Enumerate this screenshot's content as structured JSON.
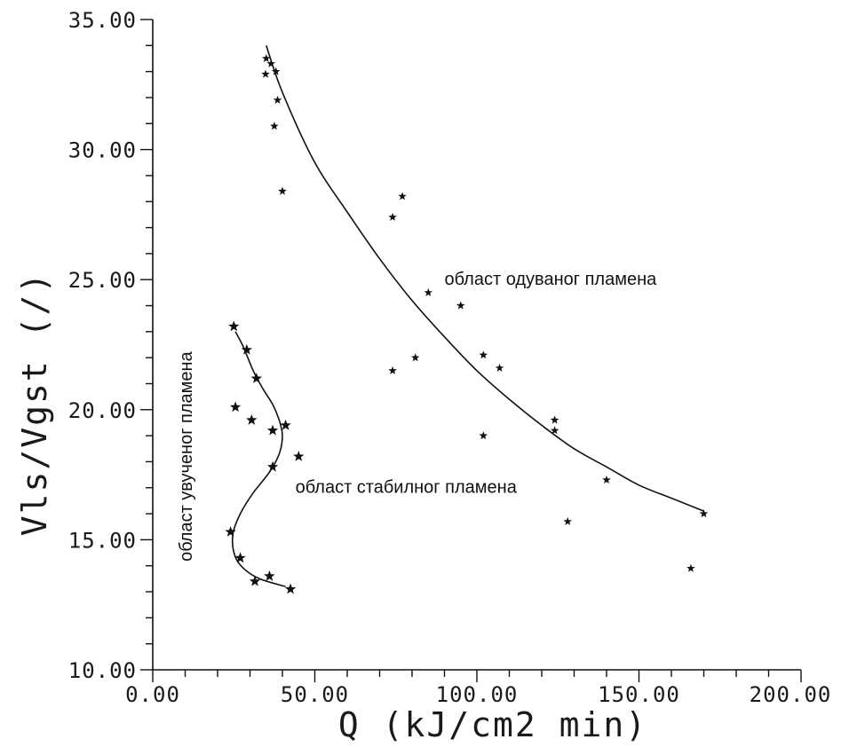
{
  "chart_data": {
    "type": "scatter",
    "title": "",
    "xlabel": "Q  (kJ/cm2 min)",
    "ylabel": "Vls/Vgst  (/)",
    "xlim": [
      0,
      200
    ],
    "ylim": [
      10,
      35
    ],
    "x_ticks": [
      "0.00",
      "50.00",
      "100.00",
      "150.00",
      "200.00"
    ],
    "y_ticks": [
      "10.00",
      "15.00",
      "20.00",
      "25.00",
      "30.00",
      "35.00"
    ],
    "grid": false,
    "marker": "star",
    "colors": {
      "ink": "#111111"
    },
    "series": [
      {
        "points": [
          [
            35.0,
            33.5
          ],
          [
            36.5,
            33.3
          ],
          [
            34.8,
            32.9
          ],
          [
            38.0,
            33.0
          ],
          [
            38.5,
            31.9
          ],
          [
            37.5,
            30.9
          ],
          [
            40.0,
            28.4
          ],
          [
            74.0,
            27.4
          ],
          [
            77.0,
            28.2
          ],
          [
            85.0,
            24.5
          ],
          [
            95.0,
            24.0
          ],
          [
            74.0,
            21.5
          ],
          [
            81.0,
            22.0
          ],
          [
            102.0,
            22.1
          ],
          [
            107.0,
            21.6
          ],
          [
            102.0,
            19.0
          ],
          [
            124.0,
            19.6
          ],
          [
            124.0,
            19.2
          ],
          [
            140.0,
            17.3
          ],
          [
            128.0,
            15.7
          ],
          [
            170.0,
            16.0
          ],
          [
            166.0,
            13.9
          ]
        ],
        "fit_curve": [
          [
            35.0,
            34.0
          ],
          [
            40.0,
            32.2
          ],
          [
            50.0,
            29.5
          ],
          [
            60.0,
            27.6
          ],
          [
            70.0,
            25.8
          ],
          [
            80.0,
            24.2
          ],
          [
            90.0,
            22.8
          ],
          [
            100.0,
            21.5
          ],
          [
            110.0,
            20.4
          ],
          [
            120.0,
            19.4
          ],
          [
            130.0,
            18.5
          ],
          [
            140.0,
            17.8
          ],
          [
            150.0,
            17.1
          ],
          [
            160.0,
            16.6
          ],
          [
            170.0,
            16.1
          ]
        ]
      },
      {
        "points": [
          [
            25.0,
            23.2
          ],
          [
            29.0,
            22.3
          ],
          [
            32.0,
            21.2
          ],
          [
            25.5,
            20.1
          ],
          [
            30.5,
            19.6
          ],
          [
            37.0,
            19.2
          ],
          [
            41.0,
            19.4
          ],
          [
            37.0,
            17.8
          ],
          [
            45.0,
            18.2
          ],
          [
            24.0,
            15.3
          ],
          [
            27.0,
            14.3
          ],
          [
            36.0,
            13.6
          ],
          [
            31.5,
            13.4
          ],
          [
            42.5,
            13.1
          ]
        ],
        "fit_curve": [
          [
            25.5,
            23.0
          ],
          [
            28.0,
            22.4
          ],
          [
            31.0,
            21.5
          ],
          [
            34.0,
            20.8
          ],
          [
            37.0,
            20.2
          ],
          [
            39.0,
            19.6
          ],
          [
            40.0,
            19.0
          ],
          [
            39.0,
            18.3
          ],
          [
            36.0,
            17.6
          ],
          [
            31.0,
            16.8
          ],
          [
            27.0,
            16.0
          ],
          [
            24.7,
            15.2
          ],
          [
            25.3,
            14.4
          ],
          [
            28.0,
            13.9
          ],
          [
            33.0,
            13.5
          ],
          [
            41.0,
            13.2
          ]
        ]
      }
    ],
    "annotations": [
      {
        "text": "област одуваног пламена",
        "x": 90,
        "y": 24.8,
        "orientation": "horizontal"
      },
      {
        "text": "област стабилног пламена",
        "x": 44,
        "y": 16.8,
        "orientation": "horizontal"
      },
      {
        "text": "област увученог пламена",
        "x": 12,
        "y": 18.2,
        "orientation": "vertical"
      }
    ]
  }
}
